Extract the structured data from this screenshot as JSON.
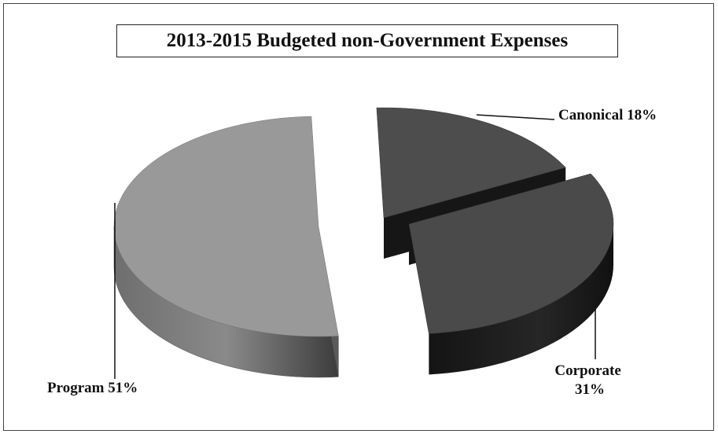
{
  "chart_data": {
    "type": "pie",
    "title": "2013-2015 Budgeted non-Government Expenses",
    "slices": [
      {
        "label": "Canonical 18%",
        "label_lines": [
          "Canonical 18%"
        ],
        "value": 18,
        "color": "#4d4d4d",
        "side_color": "#1c1c1c"
      },
      {
        "label": "Corporate 31%",
        "label_lines": [
          "Corporate",
          "31%"
        ],
        "value": 31,
        "color": "#4a4a4a",
        "side_color": "#1a1a1a"
      },
      {
        "label": "Program 51%",
        "label_lines": [
          "Program 51%"
        ],
        "value": 51,
        "color": "#999999",
        "side_color": "#6a6a6a"
      }
    ],
    "exploded": true,
    "three_d": true,
    "legend": "none"
  }
}
